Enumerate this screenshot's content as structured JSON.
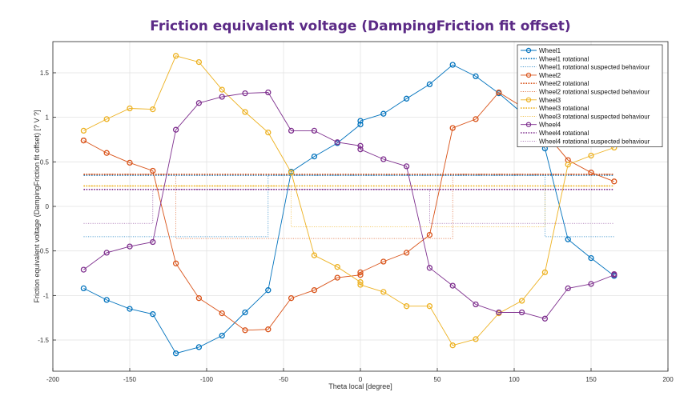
{
  "chart_data": {
    "type": "line",
    "title": "Friction equivalent voltage (DampingFriction fit offset)",
    "xlabel": "Theta local [degree]",
    "ylabel": "Friction equivalent voltage (DampingFriction fit offset) [? V ?]",
    "xlim": [
      -200,
      200
    ],
    "ylim": [
      -1.85,
      1.85
    ],
    "xticks": [
      -200,
      -150,
      -100,
      -50,
      0,
      50,
      100,
      150,
      200
    ],
    "yticks": [
      -1.5,
      -1,
      -0.5,
      0,
      0.5,
      1,
      1.5
    ],
    "grid": true,
    "legend_position": "top-right",
    "series": [
      {
        "name": "Wheel1",
        "color": "#0072bd",
        "style": "marker-line",
        "x": [
          -180,
          -165,
          -150,
          -135,
          -120,
          -105,
          -90,
          -75,
          -60,
          -45,
          -30,
          -15,
          0,
          0,
          15,
          30,
          45,
          60,
          75,
          90,
          105,
          120,
          135,
          150,
          165
        ],
        "y": [
          -0.92,
          -1.05,
          -1.15,
          -1.21,
          -1.65,
          -1.58,
          -1.45,
          -1.19,
          -0.94,
          0.39,
          0.56,
          0.71,
          0.92,
          0.96,
          1.04,
          1.21,
          1.37,
          1.59,
          1.46,
          1.27,
          1.05,
          0.65,
          -0.37,
          -0.58,
          -0.78
        ]
      },
      {
        "name": "Wheel1 rotational",
        "color": "#0072bd",
        "style": "dotted",
        "x": [
          -180,
          165
        ],
        "y": [
          0.35,
          0.35
        ]
      },
      {
        "name": "Wheel1 rotational suspected behaviour",
        "color": "#0072bd",
        "style": "thin-dotted",
        "x": [
          -180,
          -60,
          -60,
          120,
          120,
          165
        ],
        "y": [
          -0.34,
          -0.34,
          0.35,
          0.35,
          -0.34,
          -0.34
        ]
      },
      {
        "name": "Wheel2",
        "color": "#d95319",
        "style": "marker-line",
        "x": [
          -180,
          -180,
          -165,
          -150,
          -135,
          -120,
          -105,
          -90,
          -75,
          -60,
          -45,
          -30,
          -15,
          0,
          0,
          15,
          30,
          45,
          60,
          75,
          90,
          105,
          120,
          135,
          150,
          165
        ],
        "y": [
          0.74,
          0.74,
          0.6,
          0.49,
          0.4,
          -0.64,
          -1.03,
          -1.2,
          -1.39,
          -1.38,
          -1.03,
          -0.94,
          -0.8,
          -0.77,
          -0.74,
          -0.62,
          -0.52,
          -0.32,
          0.88,
          0.98,
          1.28,
          1.12,
          0.83,
          0.52,
          0.38,
          0.28
        ]
      },
      {
        "name": "Wheel2 rotational",
        "color": "#d95319",
        "style": "dotted",
        "x": [
          -180,
          165
        ],
        "y": [
          0.36,
          0.36
        ]
      },
      {
        "name": "Wheel2 rotational suspected behaviour",
        "color": "#d95319",
        "style": "thin-dotted",
        "x": [
          -180,
          -120,
          -120,
          60,
          60,
          165
        ],
        "y": [
          0.36,
          0.36,
          -0.36,
          -0.36,
          0.36,
          0.36
        ]
      },
      {
        "name": "Wheel3",
        "color": "#edb120",
        "style": "marker-line",
        "x": [
          -180,
          -165,
          -150,
          -135,
          -120,
          -105,
          -90,
          -75,
          -60,
          -45,
          -30,
          -15,
          0,
          0,
          15,
          30,
          45,
          60,
          75,
          90,
          105,
          120,
          135,
          150,
          165
        ],
        "y": [
          0.85,
          0.98,
          1.1,
          1.09,
          1.69,
          1.62,
          1.31,
          1.06,
          0.83,
          0.38,
          -0.55,
          -0.68,
          -0.85,
          -0.88,
          -0.96,
          -1.12,
          -1.12,
          -1.56,
          -1.49,
          -1.2,
          -1.06,
          -0.74,
          0.47,
          0.57,
          0.66
        ]
      },
      {
        "name": "Wheel3 rotational",
        "color": "#edb120",
        "style": "dotted",
        "x": [
          -180,
          165
        ],
        "y": [
          0.23,
          0.23
        ]
      },
      {
        "name": "Wheel3 rotational suspected behaviour",
        "color": "#edb120",
        "style": "thin-dotted",
        "x": [
          -180,
          -45,
          -45,
          120,
          120,
          165
        ],
        "y": [
          0.23,
          0.23,
          -0.23,
          -0.23,
          0.23,
          0.23
        ]
      },
      {
        "name": "Wheel4",
        "color": "#7e2f8e",
        "style": "marker-line",
        "x": [
          -180,
          -165,
          -150,
          -135,
          -120,
          -105,
          -90,
          -75,
          -60,
          -45,
          -30,
          -15,
          0,
          0,
          15,
          30,
          45,
          60,
          75,
          90,
          105,
          120,
          135,
          150,
          165,
          165
        ],
        "y": [
          -0.71,
          -0.52,
          -0.45,
          -0.4,
          0.86,
          1.16,
          1.23,
          1.27,
          1.28,
          0.85,
          0.85,
          0.72,
          0.68,
          0.64,
          0.53,
          0.45,
          -0.69,
          -0.89,
          -1.1,
          -1.19,
          -1.19,
          -1.26,
          -0.92,
          -0.87,
          -0.77,
          -0.76
        ]
      },
      {
        "name": "Wheel4 rotational",
        "color": "#7e2f8e",
        "style": "dotted",
        "x": [
          -180,
          165
        ],
        "y": [
          0.19,
          0.19
        ]
      },
      {
        "name": "Wheel4 rotational suspected behaviour",
        "color": "#7e2f8e",
        "style": "thin-dotted",
        "x": [
          -180,
          -135,
          -135,
          45,
          45,
          165
        ],
        "y": [
          -0.19,
          -0.19,
          0.19,
          0.19,
          -0.19,
          -0.19
        ]
      }
    ]
  }
}
